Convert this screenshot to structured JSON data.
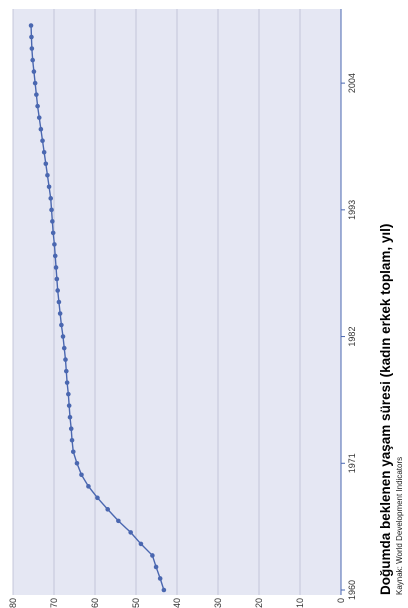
{
  "chart_data": {
    "type": "line",
    "title": "Doğumda beklenen yaşam süresi (kadın erkek toplam, yıl)",
    "source": "Kaynak: World Development Indicators",
    "xlabel": "",
    "ylabel": "",
    "xlim": [
      1960,
      2010
    ],
    "ylim": [
      0,
      80
    ],
    "x_ticks": [
      1960,
      1971,
      1982,
      1993,
      2004
    ],
    "y_ticks": [
      0,
      10,
      20,
      30,
      40,
      50,
      60,
      70,
      80
    ],
    "grid": true,
    "orientation": "rotated-90-clockwise",
    "series": [
      {
        "color": "#4a67b0",
        "x": [
          1960,
          1961,
          1962,
          1963,
          1964,
          1965,
          1966,
          1967,
          1968,
          1969,
          1970,
          1971,
          1972,
          1973,
          1974,
          1975,
          1976,
          1977,
          1978,
          1979,
          1980,
          1981,
          1982,
          1983,
          1984,
          1985,
          1986,
          1987,
          1988,
          1989,
          1990,
          1991,
          1992,
          1993,
          1994,
          1995,
          1996,
          1997,
          1998,
          1999,
          2000,
          2001,
          2002,
          2003,
          2004,
          2005,
          2006,
          2007,
          2008,
          2009
        ],
        "y": [
          43.2,
          44.1,
          45.1,
          46.0,
          48.8,
          51.3,
          54.3,
          56.9,
          59.4,
          61.6,
          63.3,
          64.4,
          65.3,
          65.6,
          65.8,
          66.1,
          66.3,
          66.5,
          66.8,
          67.0,
          67.2,
          67.5,
          67.8,
          68.2,
          68.5,
          68.8,
          69.1,
          69.3,
          69.5,
          69.7,
          69.9,
          70.2,
          70.4,
          70.6,
          70.8,
          71.2,
          71.6,
          72.0,
          72.4,
          72.8,
          73.2,
          73.6,
          74.0,
          74.3,
          74.6,
          74.9,
          75.2,
          75.4,
          75.5,
          75.6
        ]
      }
    ]
  }
}
